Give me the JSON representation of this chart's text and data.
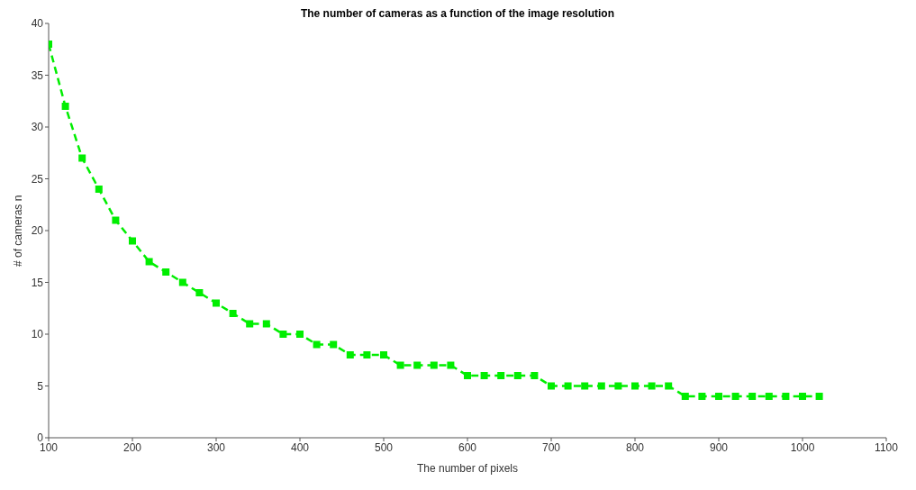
{
  "chart_data": {
    "type": "line",
    "title": "The number of cameras as a function of the image resolution",
    "xlabel": "The number of pixels",
    "ylabel": "# of cameras n",
    "x": [
      100,
      120,
      140,
      160,
      180,
      200,
      220,
      240,
      260,
      280,
      300,
      320,
      340,
      360,
      380,
      400,
      420,
      440,
      460,
      480,
      500,
      520,
      540,
      560,
      580,
      600,
      620,
      640,
      660,
      680,
      700,
      720,
      740,
      760,
      780,
      800,
      820,
      840,
      860,
      880,
      900,
      920,
      940,
      960,
      980,
      1000,
      1020
    ],
    "series": [
      {
        "color": "#00ee00",
        "values": [
          38,
          32,
          27,
          24,
          21,
          19,
          17,
          16,
          15,
          14,
          13,
          12,
          11,
          11,
          10,
          10,
          9,
          9,
          8,
          8,
          8,
          7,
          7,
          7,
          7,
          6,
          6,
          6,
          6,
          6,
          5,
          5,
          5,
          5,
          5,
          5,
          5,
          5,
          4,
          4,
          4,
          4,
          4,
          4,
          4,
          4,
          4
        ]
      }
    ],
    "xlim": [
      100,
      1100
    ],
    "xticks": [
      100,
      200,
      300,
      400,
      500,
      600,
      700,
      800,
      900,
      1000,
      1100
    ],
    "ylim": [
      0,
      40
    ],
    "yticks": [
      0,
      5,
      10,
      15,
      20,
      25,
      30,
      35,
      40
    ],
    "grid": false,
    "legend": false,
    "marker": "square",
    "line_style": "dashed"
  }
}
